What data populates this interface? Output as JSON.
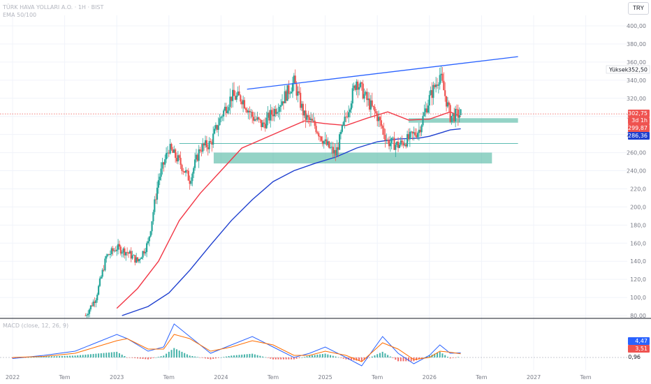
{
  "header": {
    "title": "TÜRK HAVA YOLLARI A.O. · 1H · BIST",
    "indicator": "EMA 50/100",
    "currency_button": "TRY"
  },
  "macd_label": "MACD (close, 12, 26, 9)",
  "price_axis": {
    "ticks": [
      "400,00",
      "380,00",
      "360,00",
      "340,00",
      "320,00",
      "300,00",
      "280,00",
      "260,00",
      "240,00",
      "220,0",
      "200,0",
      "180,0",
      "160,0",
      "140,0",
      "120,0",
      "100,0",
      "80,00"
    ],
    "tick_values": [
      400,
      380,
      360,
      340,
      320,
      300,
      280,
      260,
      240,
      220,
      200,
      180,
      160,
      140,
      120,
      100,
      80
    ]
  },
  "time_axis": {
    "labels": [
      "2022",
      "Tem",
      "2023",
      "Tem",
      "2024",
      "Tem",
      "2025",
      "Tem",
      "2026",
      "Tem",
      "2027",
      "Tem"
    ],
    "positions": [
      2022.0,
      2022.5,
      2023.0,
      2023.5,
      2024.0,
      2024.5,
      2025.0,
      2025.5,
      2026.0,
      2026.5,
      2027.0,
      2027.5
    ]
  },
  "tags": {
    "high_label": "Yüksek",
    "high_value": "352,50",
    "last_price": "302,75",
    "countdown": "3d 1h",
    "ema50_value": "299,87",
    "ema100_value": "286,36",
    "macd_value": "4,47",
    "signal_value": "3,51",
    "hist_value": "0,96"
  },
  "colors": {
    "up": "#26a69a",
    "down": "#ef5350",
    "ema50": "#f23645",
    "ema100": "#1e3fcf",
    "trendline": "#2962ff",
    "zone": "#4db6a0",
    "macd": "#2962ff",
    "signal": "#ff6d00",
    "grid": "#f0f3fa"
  },
  "chart_data": {
    "type": "line",
    "title": "TÜRK HAVA YOLLARI A.O. · 1H · BIST",
    "xlabel": "",
    "ylabel": "",
    "ylim": [
      80,
      410
    ],
    "x_range": [
      2022.0,
      2027.85
    ],
    "grid": true,
    "series": [
      {
        "name": "Price",
        "kind": "candles",
        "x": [
          2022.7,
          2022.8,
          2022.9,
          2023.0,
          2023.1,
          2023.2,
          2023.3,
          2023.4,
          2023.5,
          2023.6,
          2023.7,
          2023.8,
          2023.9,
          2024.0,
          2024.1,
          2024.2,
          2024.3,
          2024.4,
          2024.5,
          2024.6,
          2024.7,
          2024.8,
          2024.9,
          2025.0,
          2025.1,
          2025.2,
          2025.3,
          2025.4,
          2025.5,
          2025.6,
          2025.7,
          2025.8,
          2025.9,
          2026.0,
          2026.1,
          2026.2,
          2026.3
        ],
        "y": [
          80,
          100,
          145,
          155,
          150,
          140,
          160,
          230,
          265,
          250,
          230,
          265,
          270,
          300,
          322,
          320,
          300,
          290,
          305,
          320,
          338,
          300,
          290,
          270,
          258,
          300,
          340,
          318,
          300,
          272,
          268,
          275,
          285,
          320,
          346,
          300,
          302.75
        ]
      },
      {
        "name": "EMA 50",
        "x": [
          2023.0,
          2023.2,
          2023.4,
          2023.6,
          2023.8,
          2024.0,
          2024.2,
          2024.4,
          2024.6,
          2024.8,
          2025.0,
          2025.2,
          2025.4,
          2025.6,
          2025.8,
          2026.0,
          2026.2,
          2026.3
        ],
        "y": [
          88,
          110,
          140,
          185,
          215,
          240,
          265,
          275,
          285,
          295,
          292,
          290,
          298,
          305,
          296,
          297,
          305,
          299.87
        ]
      },
      {
        "name": "EMA 100",
        "x": [
          2023.05,
          2023.3,
          2023.5,
          2023.7,
          2023.9,
          2024.1,
          2024.3,
          2024.5,
          2024.7,
          2024.9,
          2025.1,
          2025.3,
          2025.5,
          2025.7,
          2025.9,
          2026.0,
          2026.2,
          2026.3
        ],
        "y": [
          80,
          90,
          105,
          130,
          158,
          185,
          208,
          228,
          240,
          248,
          255,
          265,
          272,
          275,
          276,
          278,
          285,
          286.36
        ]
      }
    ],
    "trendline": {
      "x": [
        2024.25,
        2026.85
      ],
      "y": [
        330,
        366
      ]
    },
    "support_line": {
      "x": [
        2023.6,
        2026.85
      ],
      "y": [
        270,
        270
      ]
    },
    "zones": [
      {
        "x": [
          2023.93,
          2026.6
        ],
        "y": [
          248,
          260
        ]
      },
      {
        "x": [
          2025.8,
          2026.85
        ],
        "y": [
          293,
          298
        ]
      }
    ],
    "macd": {
      "x": [
        2022.0,
        2022.3,
        2022.6,
        2022.8,
        2023.0,
        2023.1,
        2023.3,
        2023.45,
        2023.55,
        2023.7,
        2023.9,
        2024.1,
        2024.3,
        2024.5,
        2024.7,
        2024.85,
        2025.0,
        2025.2,
        2025.35,
        2025.55,
        2025.7,
        2025.85,
        2026.0,
        2026.1,
        2026.2,
        2026.3
      ],
      "macd": [
        -1,
        2,
        6,
        14,
        22,
        18,
        6,
        10,
        32,
        20,
        4,
        12,
        20,
        10,
        0,
        4,
        10,
        0,
        -8,
        20,
        4,
        -6,
        2,
        12,
        4,
        4.47
      ],
      "signal": [
        0,
        1,
        4,
        10,
        16,
        18,
        8,
        8,
        22,
        18,
        6,
        10,
        16,
        12,
        2,
        2,
        6,
        2,
        -4,
        14,
        8,
        -2,
        0,
        6,
        5,
        3.51
      ]
    }
  }
}
